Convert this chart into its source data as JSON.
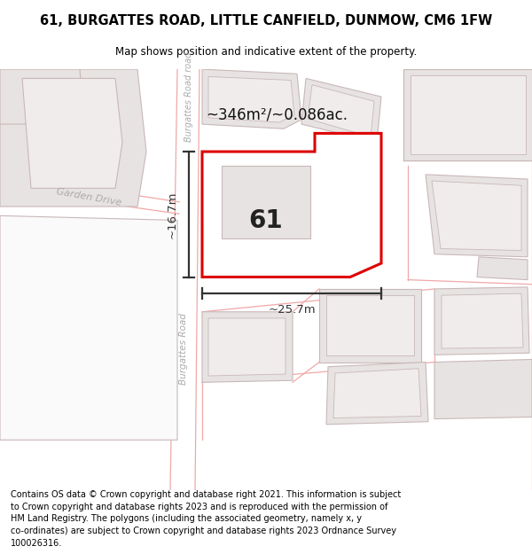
{
  "title": "61, BURGATTES ROAD, LITTLE CANFIELD, DUNMOW, CM6 1FW",
  "subtitle": "Map shows position and indicative extent of the property.",
  "footer": "Contains OS data © Crown copyright and database right 2021. This information is subject\nto Crown copyright and database rights 2023 and is reproduced with the permission of\nHM Land Registry. The polygons (including the associated geometry, namely x, y\nco-ordinates) are subject to Crown copyright and database rights 2023 Ordnance Survey\n100026316.",
  "bg_color": "#ffffff",
  "map_bg": "#f7f2f2",
  "road_color": "#ffffff",
  "bld_fill": "#e8e3e3",
  "bld_edge": "#c8b8b8",
  "plot_fill": "#ffffff",
  "plot_edge": "#dd0000",
  "dim_color": "#333333",
  "road_label_color": "#aaaaaa",
  "area_text": "~346m²/~0.086ac.",
  "plot_label": "61",
  "dim_width": "~25.7m",
  "dim_height": "~16.7m",
  "road_label_upper": "Burgattes Road road",
  "road_label_lower": "Burgattes Road",
  "garden_drive_label": "Garden Drive"
}
